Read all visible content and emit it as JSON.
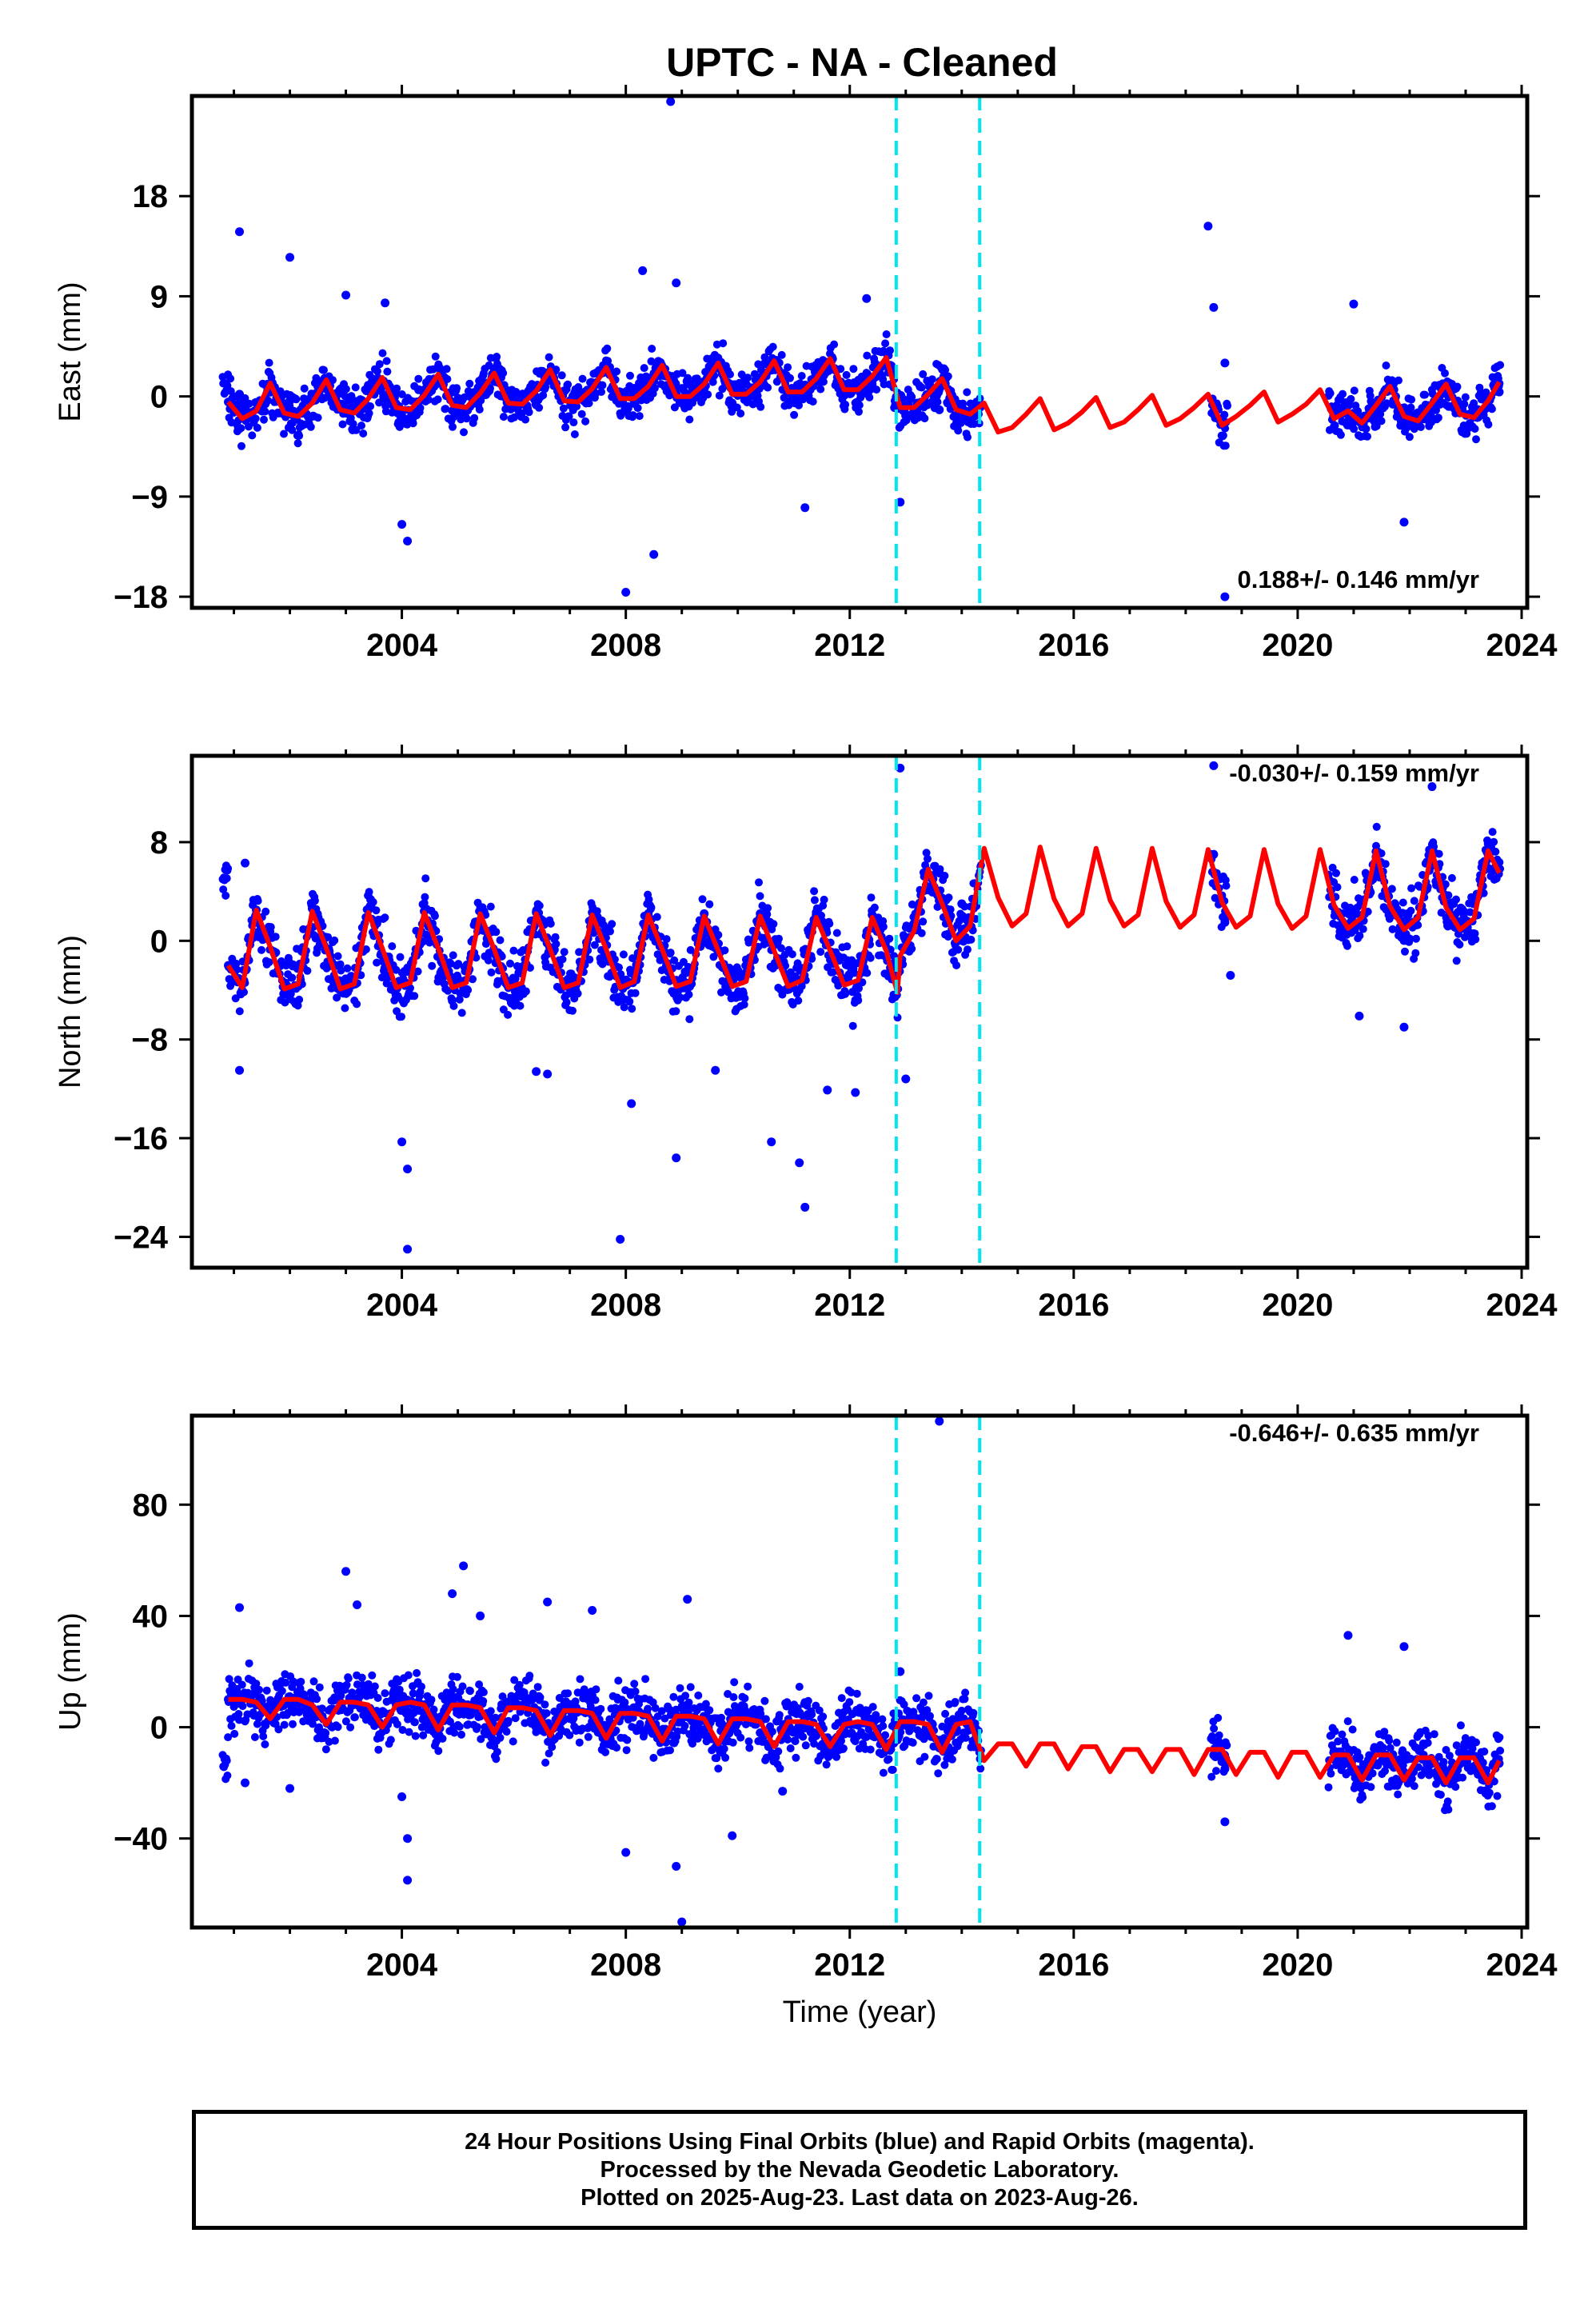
{
  "title": "UPTC  - NA - Cleaned",
  "colors": {
    "data": "#0000FF",
    "model": "#FF0000",
    "event_lines": "#00E5EE",
    "frame": "#000000"
  },
  "event_lines_years": [
    2012.83,
    2014.32
  ],
  "footer": {
    "line1": "24 Hour Positions Using Final Orbits (blue) and Rapid Orbits (magenta).",
    "line2": "Processed by the Nevada Geodetic Laboratory.",
    "line3": "Plotted on 2025-Aug-23. Last data on 2023-Aug-26."
  },
  "chart_data": [
    {
      "type": "scatter",
      "component": "east",
      "ylabel": "East (mm)",
      "xlabel": "",
      "xlim": [
        2000.25,
        2024.1
      ],
      "ylim": [
        -19,
        27
      ],
      "yticks": [
        -18,
        -9,
        0,
        9,
        18
      ],
      "xticks": [
        2004,
        2008,
        2012,
        2016,
        2020,
        2024
      ],
      "rate_label": "0.188+/- 0.146 mm/yr",
      "series": [
        {
          "kind": "scatter",
          "x": [
            2000.9,
            2001.1,
            2001.6,
            2002.0,
            2002.5,
            2002.9,
            2003.4,
            2003.9,
            2004.3,
            2004.9,
            2005.4,
            2005.9,
            2006.4,
            2006.9,
            2007.4,
            2007.9,
            2008.4,
            2008.9,
            2009.4,
            2009.9,
            2010.4,
            2010.9,
            2011.4,
            2011.9,
            2012.4,
            2012.8,
            2013.2,
            2013.6,
            2014.0,
            2018.5,
            2018.6,
            2018.7,
            2020.8,
            2021.2,
            2021.7,
            2022.2,
            2022.7,
            2023.2,
            2023.6
          ],
          "y": [
            -0.5,
            0.2,
            1.1,
            -0.4,
            0.9,
            0.3,
            1.0,
            -0.8,
            0.6,
            0.4,
            1.1,
            -0.2,
            0.8,
            0.5,
            1.2,
            -0.3,
            0.7,
            0.2,
            1.3,
            -0.6,
            0.9,
            0.4,
            1.5,
            0.1,
            1.1,
            -1.0,
            -0.6,
            -1.2,
            -0.8,
            8.0,
            -2.0,
            3.0,
            -1.0,
            -1.8,
            -0.7,
            -1.5,
            -0.9,
            -1.3,
            0.4
          ]
        },
        {
          "kind": "outliers",
          "x": [
            2001.1,
            2002.0,
            2003.0,
            2003.7,
            2004.0,
            2004.1,
            2008.0,
            2008.3,
            2008.5,
            2008.8,
            2008.9,
            2011.2,
            2012.3,
            2012.9,
            2018.4,
            2018.7,
            2021.0,
            2021.9
          ],
          "y": [
            14.8,
            12.5,
            9.1,
            8.4,
            -11.5,
            -13.0,
            -17.6,
            11.3,
            -14.2,
            26.5,
            10.2,
            -10.0,
            8.8,
            -9.5,
            15.3,
            -18.0,
            8.3,
            -11.3
          ]
        },
        {
          "kind": "line",
          "x": [
            2000.9,
            2001.15,
            2001.4,
            2001.65,
            2001.9,
            2002.15,
            2002.4,
            2002.65,
            2002.9,
            2003.15,
            2003.4,
            2003.65,
            2003.9,
            2004.15,
            2004.4,
            2004.65,
            2004.9,
            2005.15,
            2005.4,
            2005.65,
            2005.9,
            2006.15,
            2006.4,
            2006.65,
            2006.9,
            2007.15,
            2007.4,
            2007.65,
            2007.9,
            2008.15,
            2008.4,
            2008.65,
            2008.9,
            2009.15,
            2009.4,
            2009.65,
            2009.9,
            2010.15,
            2010.4,
            2010.65,
            2010.9,
            2011.15,
            2011.4,
            2011.65,
            2011.9,
            2012.15,
            2012.4,
            2012.65,
            2012.9,
            2013.15,
            2013.4,
            2013.65,
            2013.9,
            2014.15,
            2014.4,
            2014.65,
            2014.9,
            2015.15,
            2015.4,
            2015.65,
            2015.9,
            2016.15,
            2016.4,
            2016.65,
            2016.9,
            2017.15,
            2017.4,
            2017.65,
            2017.9,
            2018.15,
            2018.4,
            2018.65,
            2018.9,
            2019.15,
            2019.4,
            2019.65,
            2019.9,
            2020.15,
            2020.4,
            2020.65,
            2020.9,
            2021.15,
            2021.4,
            2021.65,
            2021.9,
            2022.15,
            2022.4,
            2022.65,
            2022.9,
            2023.15,
            2023.4,
            2023.6
          ],
          "y": [
            -0.5,
            -2.0,
            -1.3,
            1.2,
            -1.5,
            -1.8,
            -0.6,
            1.5,
            -1.2,
            -1.5,
            -0.2,
            1.7,
            -1.0,
            -1.2,
            0.1,
            2.0,
            -0.8,
            -1.0,
            0.3,
            2.1,
            -0.6,
            -0.7,
            0.5,
            2.4,
            -0.4,
            -0.5,
            0.7,
            2.6,
            -0.2,
            -0.2,
            0.9,
            2.8,
            0.0,
            0.0,
            1.1,
            3.0,
            0.2,
            0.2,
            1.3,
            3.2,
            0.4,
            0.4,
            1.6,
            3.4,
            0.6,
            0.6,
            1.8,
            3.5,
            -1.0,
            -1.0,
            0.2,
            1.6,
            -1.2,
            -1.6,
            -0.6,
            -3.2,
            -2.8,
            -1.6,
            -0.2,
            -3.0,
            -2.4,
            -1.4,
            -0.1,
            -2.8,
            -2.3,
            -1.2,
            0.1,
            -2.6,
            -2.0,
            -1.0,
            0.2,
            -2.6,
            -1.8,
            -0.8,
            0.4,
            -2.3,
            -1.6,
            -0.7,
            0.6,
            -2.0,
            -1.3,
            -2.4,
            -0.8,
            0.9,
            -1.8,
            -2.2,
            -0.6,
            1.1,
            -1.6,
            -1.9,
            -0.4,
            1.3
          ]
        }
      ]
    },
    {
      "type": "scatter",
      "component": "north",
      "ylabel": "North (mm)",
      "xlabel": "",
      "xlim": [
        2000.25,
        2024.1
      ],
      "ylim": [
        -26.5,
        15
      ],
      "yticks": [
        -24,
        -16,
        -8,
        0,
        8
      ],
      "xticks": [
        2004,
        2008,
        2012,
        2016,
        2020,
        2024
      ],
      "rate_label": "-0.030+/- 0.159 mm/yr",
      "series": [
        {
          "kind": "scatter",
          "x": [
            2000.9,
            2001.4,
            2001.9,
            2002.4,
            2002.9,
            2003.4,
            2003.9,
            2004.4,
            2004.9,
            2005.4,
            2005.9,
            2006.4,
            2006.9,
            2007.4,
            2007.9,
            2008.4,
            2008.9,
            2009.4,
            2009.9,
            2010.4,
            2010.9,
            2011.4,
            2011.9,
            2012.4,
            2012.8,
            2013.2,
            2013.6,
            2014.0,
            2018.5,
            2018.7,
            2020.9,
            2021.4,
            2021.9,
            2022.4,
            2022.9,
            2023.4
          ],
          "y": [
            -2.0,
            2.5,
            -3.5,
            2.6,
            -3.5,
            2.5,
            -3.4,
            2.4,
            -3.3,
            2.4,
            -3.3,
            2.3,
            -3.3,
            2.3,
            -3.3,
            2.2,
            -3.2,
            2.2,
            -3.2,
            2.2,
            -3.1,
            2.1,
            -3.1,
            2.1,
            -2.0,
            1.0,
            5.5,
            3.0,
            7.0,
            1.5,
            1.2,
            6.8,
            1.3,
            6.9,
            1.5,
            7.0
          ]
        },
        {
          "kind": "outliers",
          "x": [
            2001.1,
            2001.2,
            2004.0,
            2004.1,
            2004.1,
            2006.4,
            2006.6,
            2007.9,
            2008.1,
            2008.9,
            2009.6,
            2010.6,
            2011.1,
            2011.2,
            2011.6,
            2012.1,
            2012.9,
            2013.0,
            2018.5,
            2018.8,
            2021.1,
            2021.9,
            2022.4
          ],
          "y": [
            -10.5,
            6.3,
            -16.3,
            -25.0,
            -18.5,
            -10.6,
            -10.8,
            -24.2,
            -13.2,
            -17.6,
            -10.5,
            -16.3,
            -18.0,
            -21.6,
            -12.1,
            -12.3,
            14.0,
            -11.2,
            14.2,
            -2.8,
            -6.1,
            -7.0,
            12.5
          ]
        },
        {
          "kind": "line",
          "x": [
            2000.9,
            2001.15,
            2001.4,
            2001.65,
            2001.9,
            2002.15,
            2002.4,
            2002.65,
            2002.9,
            2003.15,
            2003.4,
            2003.65,
            2003.9,
            2004.15,
            2004.4,
            2004.65,
            2004.9,
            2005.15,
            2005.4,
            2005.65,
            2005.9,
            2006.15,
            2006.4,
            2006.65,
            2006.9,
            2007.15,
            2007.4,
            2007.65,
            2007.9,
            2008.15,
            2008.4,
            2008.65,
            2008.9,
            2009.15,
            2009.4,
            2009.65,
            2009.9,
            2010.15,
            2010.4,
            2010.65,
            2010.9,
            2011.15,
            2011.4,
            2011.65,
            2011.9,
            2012.15,
            2012.4,
            2012.65,
            2012.85,
            2012.9,
            2013.15,
            2013.4,
            2013.65,
            2013.9,
            2014.15,
            2014.4,
            2014.65,
            2014.9,
            2015.15,
            2015.4,
            2015.65,
            2015.9,
            2016.15,
            2016.4,
            2016.65,
            2016.9,
            2017.15,
            2017.4,
            2017.65,
            2017.9,
            2018.15,
            2018.4,
            2018.65,
            2018.9,
            2019.15,
            2019.4,
            2019.65,
            2019.9,
            2020.15,
            2020.4,
            2020.65,
            2020.9,
            2021.15,
            2021.4,
            2021.65,
            2021.9,
            2022.15,
            2022.4,
            2022.65,
            2022.9,
            2023.15,
            2023.4,
            2023.6
          ],
          "y": [
            -2.0,
            -3.8,
            2.5,
            -0.5,
            -3.9,
            -3.5,
            2.4,
            -0.6,
            -3.9,
            -3.5,
            2.3,
            -0.6,
            -3.8,
            -3.4,
            2.3,
            -0.6,
            -3.8,
            -3.4,
            2.2,
            -0.7,
            -3.8,
            -3.4,
            2.2,
            -0.7,
            -3.8,
            -3.4,
            2.1,
            -0.7,
            -3.8,
            -3.3,
            2.1,
            -0.7,
            -3.7,
            -3.3,
            2.0,
            -0.8,
            -3.7,
            -3.3,
            2.0,
            -0.8,
            -3.7,
            -3.2,
            1.9,
            -0.8,
            -3.6,
            -3.2,
            1.9,
            -0.8,
            -4.2,
            -1.2,
            0.8,
            5.8,
            3.0,
            0.0,
            1.2,
            7.5,
            3.5,
            1.2,
            2.2,
            7.6,
            3.4,
            1.2,
            2.2,
            7.5,
            3.3,
            1.2,
            2.1,
            7.5,
            3.2,
            1.1,
            2.1,
            7.4,
            3.1,
            1.1,
            2.0,
            7.4,
            3.0,
            1.0,
            2.0,
            7.4,
            2.9,
            1.0,
            1.9,
            7.3,
            2.8,
            0.9,
            1.9,
            7.3,
            2.7,
            0.9,
            1.8,
            7.3,
            5.5
          ]
        }
      ]
    },
    {
      "type": "scatter",
      "component": "up",
      "ylabel": "Up (mm)",
      "xlabel": "Time (year)",
      "xlim": [
        2000.25,
        2024.1
      ],
      "ylim": [
        -72,
        112
      ],
      "yticks": [
        -40,
        0,
        40,
        80
      ],
      "xticks": [
        2004,
        2008,
        2012,
        2016,
        2020,
        2024
      ],
      "rate_label": "-0.646+/- 0.635 mm/yr",
      "series": [
        {
          "kind": "scatter",
          "x": [
            2000.9,
            2001.4,
            2001.9,
            2002.4,
            2002.9,
            2003.4,
            2003.9,
            2004.4,
            2004.9,
            2005.4,
            2005.9,
            2006.4,
            2006.9,
            2007.4,
            2007.9,
            2008.4,
            2008.9,
            2009.4,
            2009.9,
            2010.4,
            2010.9,
            2011.4,
            2011.9,
            2012.4,
            2012.8,
            2013.3,
            2013.8,
            2014.2,
            2018.5,
            2018.7,
            2020.8,
            2021.3,
            2021.8,
            2022.3,
            2022.8,
            2023.3,
            2023.6
          ],
          "y": [
            10,
            8,
            9,
            7,
            9,
            6,
            8,
            5,
            8,
            4,
            7,
            3,
            6,
            2,
            5,
            0,
            4,
            -1,
            3,
            -2,
            2,
            -3,
            2,
            -3,
            1,
            -2,
            0,
            -5,
            -10,
            -15,
            -10,
            -14,
            -12,
            -16,
            -14,
            -16,
            -13
          ]
        },
        {
          "kind": "outliers",
          "x": [
            2001.1,
            2001.2,
            2002.0,
            2003.0,
            2003.2,
            2004.0,
            2004.1,
            2004.1,
            2004.9,
            2005.1,
            2005.4,
            2006.6,
            2007.4,
            2008.0,
            2008.9,
            2009.0,
            2009.1,
            2009.9,
            2010.8,
            2012.9,
            2013.6,
            2018.7,
            2020.9,
            2021.9
          ],
          "y": [
            43,
            -20,
            -22,
            56,
            44,
            -25,
            -40,
            -55,
            48,
            58,
            40,
            45,
            42,
            -45,
            -50,
            -70,
            46,
            -39,
            -23,
            20,
            110,
            -34,
            33,
            29
          ]
        },
        {
          "kind": "line",
          "x": [
            2000.9,
            2001.15,
            2001.4,
            2001.65,
            2001.9,
            2002.15,
            2002.4,
            2002.65,
            2002.9,
            2003.15,
            2003.4,
            2003.65,
            2003.9,
            2004.15,
            2004.4,
            2004.65,
            2004.9,
            2005.15,
            2005.4,
            2005.65,
            2005.9,
            2006.15,
            2006.4,
            2006.65,
            2006.9,
            2007.15,
            2007.4,
            2007.65,
            2007.9,
            2008.15,
            2008.4,
            2008.65,
            2008.9,
            2009.15,
            2009.4,
            2009.65,
            2009.9,
            2010.15,
            2010.4,
            2010.65,
            2010.9,
            2011.15,
            2011.4,
            2011.65,
            2011.9,
            2012.15,
            2012.4,
            2012.65,
            2012.9,
            2013.15,
            2013.4,
            2013.65,
            2013.9,
            2014.15,
            2014.4,
            2014.65,
            2014.9,
            2015.15,
            2015.4,
            2015.65,
            2015.9,
            2016.15,
            2016.4,
            2016.65,
            2016.9,
            2017.15,
            2017.4,
            2017.65,
            2017.9,
            2018.15,
            2018.4,
            2018.65,
            2018.9,
            2019.15,
            2019.4,
            2019.65,
            2019.9,
            2020.15,
            2020.4,
            2020.65,
            2020.9,
            2021.15,
            2021.4,
            2021.65,
            2021.9,
            2022.15,
            2022.4,
            2022.65,
            2022.9,
            2023.15,
            2023.4,
            2023.6
          ],
          "y": [
            10,
            10,
            9,
            3,
            10,
            10,
            8,
            1,
            9,
            9,
            8,
            0,
            8,
            9,
            8,
            -1,
            8,
            8,
            7,
            -2,
            7,
            7,
            6,
            -3,
            6,
            6,
            5,
            -4,
            5,
            5,
            4,
            -5,
            4,
            4,
            3,
            -6,
            3,
            3,
            2,
            -7,
            2,
            2,
            1,
            -7,
            1,
            2,
            1,
            -8,
            2,
            2,
            1,
            -9,
            1,
            2,
            -12,
            -6,
            -6,
            -14,
            -6,
            -6,
            -15,
            -7,
            -7,
            -16,
            -8,
            -8,
            -16,
            -8,
            -8,
            -17,
            -8,
            -8,
            -17,
            -9,
            -9,
            -18,
            -9,
            -9,
            -18,
            -10,
            -10,
            -19,
            -10,
            -10,
            -19,
            -11,
            -11,
            -20,
            -11,
            -11,
            -20,
            -12
          ]
        }
      ]
    }
  ]
}
